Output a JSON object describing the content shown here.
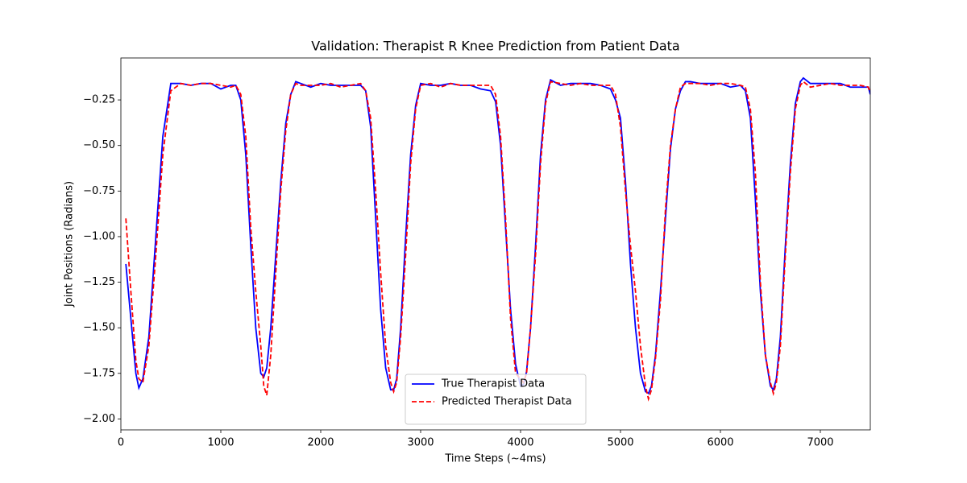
{
  "chart_data": {
    "type": "line",
    "title": "Validation: Therapist R Knee Prediction from Patient Data",
    "x_label": "Time Steps (~4ms)",
    "y_label": "Joint Positions (Radians)",
    "xlim": [
      0,
      7500
    ],
    "ylim": [
      -2.06,
      -0.02
    ],
    "xticks": [
      0,
      1000,
      2000,
      3000,
      4000,
      5000,
      6000,
      7000
    ],
    "yticks": [
      {
        "value": -2.0,
        "label": "−2.00"
      },
      {
        "value": -1.75,
        "label": "−1.75"
      },
      {
        "value": -1.5,
        "label": "−1.50"
      },
      {
        "value": -1.25,
        "label": "−1.25"
      },
      {
        "value": -1.0,
        "label": "−1.00"
      },
      {
        "value": -0.75,
        "label": "−0.75"
      },
      {
        "value": -0.5,
        "label": "−0.50"
      },
      {
        "value": -0.25,
        "label": "−0.25"
      }
    ],
    "grid": false,
    "legend": "lower center",
    "x": [
      50,
      100,
      150,
      180,
      220,
      280,
      350,
      420,
      500,
      600,
      700,
      800,
      900,
      1000,
      1100,
      1150,
      1200,
      1250,
      1300,
      1350,
      1400,
      1430,
      1460,
      1500,
      1550,
      1600,
      1650,
      1700,
      1750,
      1800,
      1900,
      2000,
      2100,
      2200,
      2300,
      2400,
      2450,
      2500,
      2550,
      2600,
      2650,
      2700,
      2730,
      2760,
      2800,
      2850,
      2900,
      2950,
      3000,
      3100,
      3200,
      3300,
      3400,
      3500,
      3600,
      3700,
      3750,
      3800,
      3850,
      3900,
      3950,
      4000,
      4030,
      4060,
      4100,
      4150,
      4200,
      4250,
      4300,
      4400,
      4500,
      4600,
      4700,
      4800,
      4900,
      4950,
      5000,
      5050,
      5100,
      5150,
      5200,
      5250,
      5280,
      5310,
      5350,
      5400,
      5450,
      5500,
      5550,
      5600,
      5650,
      5700,
      5800,
      5900,
      6000,
      6100,
      6200,
      6250,
      6300,
      6350,
      6400,
      6450,
      6500,
      6530,
      6560,
      6600,
      6650,
      6700,
      6750,
      6800,
      6830,
      6900,
      7000,
      7100,
      7200,
      7300,
      7400,
      7480,
      7500
    ],
    "series": [
      {
        "name": "True Therapist Data",
        "color": "#0000ff",
        "linestyle": "solid",
        "values": [
          -1.15,
          -1.45,
          -1.75,
          -1.83,
          -1.78,
          -1.55,
          -1.0,
          -0.45,
          -0.16,
          -0.16,
          -0.17,
          -0.16,
          -0.16,
          -0.19,
          -0.17,
          -0.17,
          -0.25,
          -0.55,
          -1.05,
          -1.5,
          -1.75,
          -1.77,
          -1.72,
          -1.5,
          -1.1,
          -0.7,
          -0.38,
          -0.22,
          -0.15,
          -0.16,
          -0.18,
          -0.16,
          -0.17,
          -0.17,
          -0.17,
          -0.17,
          -0.2,
          -0.4,
          -0.9,
          -1.4,
          -1.72,
          -1.84,
          -1.84,
          -1.78,
          -1.5,
          -1.0,
          -0.55,
          -0.28,
          -0.16,
          -0.17,
          -0.17,
          -0.16,
          -0.17,
          -0.17,
          -0.19,
          -0.2,
          -0.26,
          -0.5,
          -0.95,
          -1.4,
          -1.7,
          -1.82,
          -1.81,
          -1.74,
          -1.5,
          -1.05,
          -0.55,
          -0.25,
          -0.14,
          -0.17,
          -0.16,
          -0.16,
          -0.16,
          -0.17,
          -0.19,
          -0.25,
          -0.35,
          -0.7,
          -1.15,
          -1.5,
          -1.75,
          -1.85,
          -1.86,
          -1.82,
          -1.65,
          -1.3,
          -0.9,
          -0.52,
          -0.3,
          -0.2,
          -0.15,
          -0.15,
          -0.16,
          -0.16,
          -0.16,
          -0.18,
          -0.17,
          -0.2,
          -0.35,
          -0.8,
          -1.3,
          -1.65,
          -1.82,
          -1.84,
          -1.78,
          -1.55,
          -1.05,
          -0.6,
          -0.27,
          -0.15,
          -0.13,
          -0.16,
          -0.16,
          -0.16,
          -0.16,
          -0.18,
          -0.18,
          -0.18,
          -0.22
        ]
      },
      {
        "name": "Predicted Therapist Data",
        "color": "#ff0000",
        "linestyle": "dashed",
        "values": [
          -0.9,
          -1.3,
          -1.68,
          -1.78,
          -1.8,
          -1.6,
          -1.1,
          -0.55,
          -0.2,
          -0.16,
          -0.17,
          -0.16,
          -0.16,
          -0.17,
          -0.18,
          -0.17,
          -0.22,
          -0.45,
          -0.95,
          -1.3,
          -1.6,
          -1.82,
          -1.87,
          -1.65,
          -1.2,
          -0.75,
          -0.42,
          -0.22,
          -0.16,
          -0.17,
          -0.17,
          -0.17,
          -0.16,
          -0.18,
          -0.17,
          -0.16,
          -0.2,
          -0.35,
          -0.75,
          -1.2,
          -1.6,
          -1.8,
          -1.85,
          -1.8,
          -1.55,
          -1.1,
          -0.6,
          -0.3,
          -0.17,
          -0.16,
          -0.18,
          -0.16,
          -0.17,
          -0.17,
          -0.17,
          -0.17,
          -0.22,
          -0.45,
          -0.9,
          -1.45,
          -1.75,
          -1.78,
          -1.8,
          -1.75,
          -1.5,
          -1.1,
          -0.6,
          -0.27,
          -0.15,
          -0.16,
          -0.17,
          -0.16,
          -0.17,
          -0.17,
          -0.17,
          -0.22,
          -0.4,
          -0.75,
          -1.05,
          -1.3,
          -1.6,
          -1.82,
          -1.89,
          -1.84,
          -1.67,
          -1.35,
          -0.85,
          -0.5,
          -0.3,
          -0.18,
          -0.16,
          -0.16,
          -0.16,
          -0.17,
          -0.16,
          -0.16,
          -0.17,
          -0.18,
          -0.3,
          -0.65,
          -1.25,
          -1.65,
          -1.8,
          -1.86,
          -1.8,
          -1.6,
          -1.1,
          -0.65,
          -0.3,
          -0.17,
          -0.15,
          -0.18,
          -0.17,
          -0.16,
          -0.17,
          -0.17,
          -0.17,
          -0.18,
          -0.21
        ]
      }
    ]
  }
}
